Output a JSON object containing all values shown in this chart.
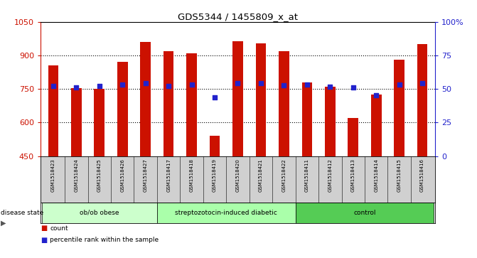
{
  "title": "GDS5344 / 1455809_x_at",
  "samples": [
    "GSM1518423",
    "GSM1518424",
    "GSM1518425",
    "GSM1518426",
    "GSM1518427",
    "GSM1518417",
    "GSM1518418",
    "GSM1518419",
    "GSM1518420",
    "GSM1518421",
    "GSM1518422",
    "GSM1518411",
    "GSM1518412",
    "GSM1518413",
    "GSM1518414",
    "GSM1518415",
    "GSM1518416"
  ],
  "counts": [
    855,
    755,
    750,
    870,
    960,
    920,
    910,
    540,
    965,
    955,
    920,
    780,
    760,
    620,
    725,
    880,
    950
  ],
  "percentile_ranks_left_axis": [
    762,
    758,
    763,
    770,
    775,
    762,
    770,
    714,
    775,
    775,
    768,
    770,
    760,
    758,
    723,
    770,
    775
  ],
  "groups": [
    {
      "name": "ob/ob obese",
      "start": 0,
      "end": 5
    },
    {
      "name": "streptozotocin-induced diabetic",
      "start": 5,
      "end": 11
    },
    {
      "name": "control",
      "start": 11,
      "end": 17
    }
  ],
  "group_colors": [
    "#ccffcc",
    "#aaffaa",
    "#55cc55"
  ],
  "ylim_left": [
    450,
    1050
  ],
  "ylim_right": [
    0,
    100
  ],
  "bar_color": "#cc1100",
  "marker_color": "#2222cc",
  "bar_bottom": 450,
  "label_bg_color": "#d0d0d0"
}
